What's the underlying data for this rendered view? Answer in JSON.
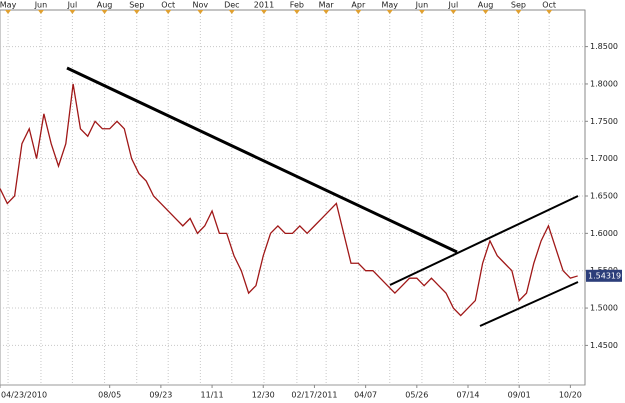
{
  "chart_data": {
    "type": "line",
    "xlim": [
      0,
      80
    ],
    "ylim": [
      1.397,
      1.899
    ],
    "grid": true,
    "yticks": [
      {
        "value": 1.85,
        "label": "1.8500"
      },
      {
        "value": 1.8,
        "label": "1.8000"
      },
      {
        "value": 1.75,
        "label": "1.7500"
      },
      {
        "value": 1.7,
        "label": "1.7000"
      },
      {
        "value": 1.65,
        "label": "1.6500"
      },
      {
        "value": 1.6,
        "label": "1.6000"
      },
      {
        "value": 1.55,
        "label": "1.5500"
      },
      {
        "value": 1.5,
        "label": "1.5000"
      },
      {
        "value": 1.45,
        "label": "1.4500"
      }
    ],
    "xticks_top": [
      {
        "value": 1.1,
        "label": "May"
      },
      {
        "value": 5.6,
        "label": "Jun"
      },
      {
        "value": 9.9,
        "label": "Jul"
      },
      {
        "value": 14.3,
        "label": "Aug"
      },
      {
        "value": 18.7,
        "label": "Sep"
      },
      {
        "value": 23,
        "label": "Oct"
      },
      {
        "value": 27.4,
        "label": "Nov"
      },
      {
        "value": 31.7,
        "label": "Dec"
      },
      {
        "value": 36.1,
        "label": "2011"
      },
      {
        "value": 40.6,
        "label": "Feb"
      },
      {
        "value": 44.6,
        "label": "Mar"
      },
      {
        "value": 49,
        "label": "Apr"
      },
      {
        "value": 53.3,
        "label": "May"
      },
      {
        "value": 57.7,
        "label": "Jun"
      },
      {
        "value": 62,
        "label": "Jul"
      },
      {
        "value": 66.4,
        "label": "Aug"
      },
      {
        "value": 70.9,
        "label": "Sep"
      },
      {
        "value": 75.1,
        "label": "Oct"
      }
    ],
    "xticks": [
      {
        "value": 0,
        "label": "04/23/2010"
      },
      {
        "value": 15,
        "label": "08/05"
      },
      {
        "value": 22,
        "label": "09/23"
      },
      {
        "value": 29,
        "label": "11/11"
      },
      {
        "value": 36,
        "label": "12/30"
      },
      {
        "value": 43,
        "label": "02/17/2011"
      },
      {
        "value": 50,
        "label": "04/07"
      },
      {
        "value": 57,
        "label": "05/26"
      },
      {
        "value": 64,
        "label": "07/14"
      },
      {
        "value": 71,
        "label": "09/01"
      },
      {
        "value": 78,
        "label": "10/20"
      }
    ],
    "series": [
      {
        "color": "#a01818",
        "values": [
          1.66,
          1.64,
          1.65,
          1.72,
          1.74,
          1.7,
          1.76,
          1.72,
          1.69,
          1.72,
          1.8,
          1.74,
          1.73,
          1.75,
          1.74,
          1.74,
          1.75,
          1.74,
          1.7,
          1.68,
          1.67,
          1.65,
          1.64,
          1.63,
          1.62,
          1.61,
          1.62,
          1.6,
          1.61,
          1.63,
          1.6,
          1.6,
          1.57,
          1.55,
          1.52,
          1.53,
          1.57,
          1.6,
          1.61,
          1.6,
          1.6,
          1.61,
          1.6,
          1.61,
          1.62,
          1.63,
          1.64,
          1.6,
          1.56,
          1.56,
          1.55,
          1.55,
          1.54,
          1.53,
          1.52,
          1.53,
          1.54,
          1.54,
          1.53,
          1.54,
          1.53,
          1.52,
          1.5,
          1.49,
          1.5,
          1.51,
          1.56,
          1.59,
          1.57,
          1.56,
          1.55,
          1.51,
          1.52,
          1.56,
          1.59,
          1.61,
          1.58,
          1.55,
          1.54,
          1.543
        ]
      }
    ],
    "current_price": 1.54319
  }
}
